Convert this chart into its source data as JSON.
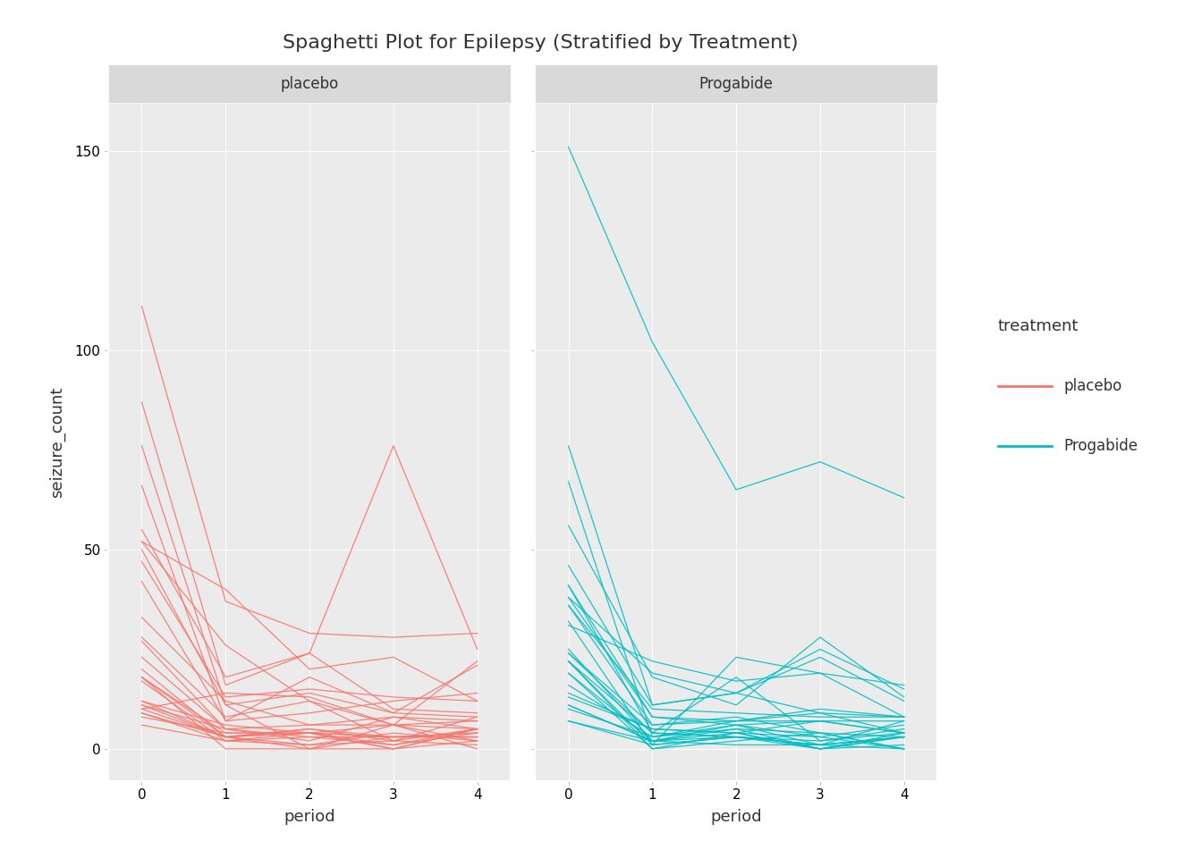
{
  "title": "Spaghetti Plot for Epilepsy (Stratified by Treatment)",
  "xlabel": "period",
  "ylabel": "seizure_count",
  "panel_bg": "#EBEBEB",
  "fig_bg": "#FFFFFF",
  "strip_bg": "#D9D9D9",
  "placebo_color": "#F8766D",
  "progabide_color": "#00BFC4",
  "legend_title": "treatment",
  "legend_labels": [
    "placebo",
    "Progabide"
  ],
  "panel_labels": [
    "placebo",
    "Progabide"
  ],
  "y_ticks": [
    0,
    50,
    100,
    150
  ],
  "x_ticks": [
    0,
    1,
    2,
    3,
    4
  ],
  "ylim": [
    -8,
    162
  ],
  "xlim": [
    -0.4,
    4.4
  ],
  "placebo_data": [
    [
      11,
      5,
      3,
      3,
      3
    ],
    [
      11,
      3,
      5,
      3,
      3
    ],
    [
      6,
      2,
      4,
      0,
      5
    ],
    [
      8,
      4,
      4,
      1,
      4
    ],
    [
      66,
      7,
      18,
      9,
      21
    ],
    [
      27,
      5,
      2,
      8,
      7
    ],
    [
      12,
      6,
      4,
      0,
      2
    ],
    [
      52,
      40,
      20,
      23,
      12
    ],
    [
      23,
      5,
      6,
      6,
      5
    ],
    [
      10,
      14,
      13,
      6,
      0
    ],
    [
      52,
      26,
      12,
      6,
      22
    ],
    [
      33,
      12,
      6,
      8,
      5
    ],
    [
      18,
      4,
      4,
      6,
      2
    ],
    [
      42,
      7,
      9,
      12,
      14
    ],
    [
      87,
      16,
      24,
      10,
      9
    ],
    [
      50,
      11,
      0,
      0,
      5
    ],
    [
      18,
      0,
      0,
      3,
      3
    ],
    [
      111,
      37,
      29,
      28,
      29
    ],
    [
      18,
      3,
      5,
      2,
      5
    ],
    [
      20,
      3,
      0,
      6,
      7
    ],
    [
      12,
      3,
      4,
      3,
      4
    ],
    [
      9,
      3,
      4,
      3,
      4
    ],
    [
      17,
      2,
      3,
      1,
      5
    ],
    [
      28,
      8,
      12,
      2,
      8
    ],
    [
      55,
      18,
      24,
      76,
      25
    ],
    [
      9,
      2,
      1,
      2,
      1
    ],
    [
      10,
      3,
      1,
      4,
      2
    ],
    [
      47,
      13,
      15,
      13,
      12
    ],
    [
      76,
      11,
      14,
      9,
      8
    ]
  ],
  "progabide_data": [
    [
      76,
      11,
      14,
      9,
      8
    ],
    [
      38,
      8,
      7,
      9,
      4
    ],
    [
      19,
      0,
      4,
      3,
      0
    ],
    [
      10,
      3,
      6,
      1,
      3
    ],
    [
      19,
      2,
      6,
      7,
      4
    ],
    [
      24,
      4,
      3,
      1,
      3
    ],
    [
      31,
      22,
      17,
      19,
      16
    ],
    [
      14,
      5,
      4,
      7,
      4
    ],
    [
      11,
      2,
      4,
      0,
      4
    ],
    [
      67,
      3,
      7,
      7,
      7
    ],
    [
      41,
      4,
      18,
      2,
      5
    ],
    [
      7,
      2,
      1,
      1,
      0
    ],
    [
      22,
      0,
      2,
      4,
      0
    ],
    [
      13,
      5,
      4,
      0,
      3
    ],
    [
      46,
      11,
      14,
      25,
      15
    ],
    [
      36,
      10,
      9,
      8,
      8
    ],
    [
      38,
      19,
      14,
      23,
      12
    ],
    [
      7,
      1,
      3,
      1,
      3
    ],
    [
      36,
      6,
      7,
      10,
      8
    ],
    [
      11,
      2,
      5,
      0,
      3
    ],
    [
      151,
      102,
      65,
      72,
      63
    ],
    [
      22,
      4,
      3,
      1,
      7
    ],
    [
      41,
      8,
      6,
      3,
      6
    ],
    [
      32,
      1,
      3,
      2,
      4
    ],
    [
      56,
      18,
      11,
      28,
      13
    ],
    [
      24,
      6,
      8,
      4,
      0
    ],
    [
      16,
      3,
      5,
      4,
      3
    ],
    [
      22,
      1,
      23,
      19,
      8
    ],
    [
      25,
      2,
      3,
      0,
      1
    ]
  ]
}
